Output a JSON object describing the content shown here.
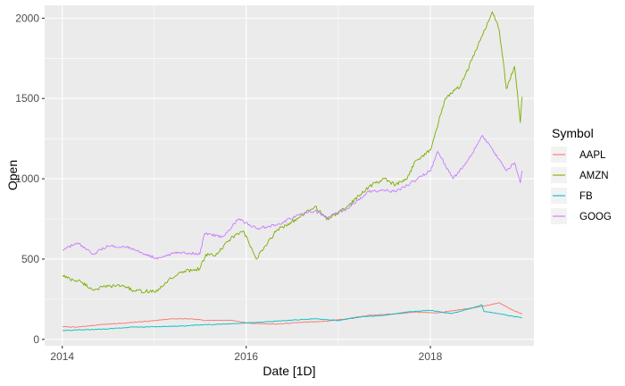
{
  "chart_data": {
    "type": "line",
    "xlabel": "Date [1D]",
    "ylabel": "Open",
    "xlim": [
      "2013-10-23",
      "2019-02-16"
    ],
    "ylim": [
      -40,
      2080
    ],
    "x_ticks": [
      {
        "date": "2014-01-01",
        "label": "2014"
      },
      {
        "date": "2016-01-01",
        "label": "2016"
      },
      {
        "date": "2018-01-01",
        "label": "2018"
      }
    ],
    "y_ticks": [
      0,
      500,
      1000,
      1500,
      2000
    ],
    "grid": true,
    "legend": {
      "title": "Symbol",
      "position": "right"
    },
    "series": [
      {
        "name": "AAPL",
        "color": "#F8766D",
        "points": [
          [
            "2014-01-02",
            79
          ],
          [
            "2014-03-01",
            76
          ],
          [
            "2014-06-01",
            92
          ],
          [
            "2014-09-01",
            101
          ],
          [
            "2014-12-01",
            112
          ],
          [
            "2015-03-01",
            127
          ],
          [
            "2015-05-15",
            128
          ],
          [
            "2015-08-01",
            118
          ],
          [
            "2015-11-01",
            119
          ],
          [
            "2016-01-15",
            100
          ],
          [
            "2016-05-01",
            95
          ],
          [
            "2016-08-01",
            106
          ],
          [
            "2016-11-01",
            111
          ],
          [
            "2017-02-01",
            128
          ],
          [
            "2017-05-01",
            150
          ],
          [
            "2017-08-01",
            157
          ],
          [
            "2017-11-01",
            170
          ],
          [
            "2018-02-01",
            165
          ],
          [
            "2018-05-01",
            185
          ],
          [
            "2018-08-01",
            207
          ],
          [
            "2018-10-01",
            228
          ],
          [
            "2018-11-15",
            190
          ],
          [
            "2018-12-31",
            157
          ]
        ]
      },
      {
        "name": "AMZN",
        "color": "#7CAE00",
        "points": [
          [
            "2014-01-02",
            398
          ],
          [
            "2014-02-01",
            375
          ],
          [
            "2014-03-15",
            360
          ],
          [
            "2014-05-01",
            310
          ],
          [
            "2014-07-01",
            330
          ],
          [
            "2014-09-01",
            335
          ],
          [
            "2014-10-15",
            300
          ],
          [
            "2015-01-15",
            300
          ],
          [
            "2015-03-01",
            375
          ],
          [
            "2015-05-01",
            425
          ],
          [
            "2015-07-01",
            440
          ],
          [
            "2015-07-25",
            530
          ],
          [
            "2015-09-01",
            520
          ],
          [
            "2015-11-01",
            630
          ],
          [
            "2015-12-20",
            675
          ],
          [
            "2016-02-10",
            500
          ],
          [
            "2016-05-01",
            680
          ],
          [
            "2016-08-01",
            760
          ],
          [
            "2016-10-01",
            830
          ],
          [
            "2016-11-15",
            745
          ],
          [
            "2017-02-01",
            820
          ],
          [
            "2017-05-01",
            950
          ],
          [
            "2017-07-01",
            1000
          ],
          [
            "2017-08-15",
            960
          ],
          [
            "2017-10-01",
            1000
          ],
          [
            "2017-11-01",
            1110
          ],
          [
            "2018-01-02",
            1180
          ],
          [
            "2018-03-01",
            1500
          ],
          [
            "2018-05-01",
            1580
          ],
          [
            "2018-07-01",
            1800
          ],
          [
            "2018-09-04",
            2040
          ],
          [
            "2018-10-01",
            1930
          ],
          [
            "2018-10-30",
            1560
          ],
          [
            "2018-12-01",
            1700
          ],
          [
            "2018-12-24",
            1350
          ],
          [
            "2018-12-31",
            1510
          ]
        ]
      },
      {
        "name": "FB",
        "color": "#00BFC4",
        "points": [
          [
            "2014-01-02",
            55
          ],
          [
            "2014-04-01",
            60
          ],
          [
            "2014-07-01",
            65
          ],
          [
            "2014-10-01",
            77
          ],
          [
            "2015-01-01",
            78
          ],
          [
            "2015-04-01",
            82
          ],
          [
            "2015-07-01",
            90
          ],
          [
            "2015-10-01",
            95
          ],
          [
            "2016-01-01",
            102
          ],
          [
            "2016-04-01",
            110
          ],
          [
            "2016-07-01",
            120
          ],
          [
            "2016-10-01",
            128
          ],
          [
            "2017-01-01",
            117
          ],
          [
            "2017-04-01",
            140
          ],
          [
            "2017-07-01",
            150
          ],
          [
            "2017-10-01",
            170
          ],
          [
            "2018-01-01",
            181
          ],
          [
            "2018-03-25",
            160
          ],
          [
            "2018-05-01",
            175
          ],
          [
            "2018-07-25",
            215
          ],
          [
            "2018-08-01",
            175
          ],
          [
            "2018-10-01",
            160
          ],
          [
            "2018-12-31",
            134
          ]
        ]
      },
      {
        "name": "GOOG",
        "color": "#C77CFF",
        "points": [
          [
            "2014-01-02",
            555
          ],
          [
            "2014-03-01",
            600
          ],
          [
            "2014-05-01",
            530
          ],
          [
            "2014-07-01",
            580
          ],
          [
            "2014-09-01",
            580
          ],
          [
            "2014-12-01",
            530
          ],
          [
            "2015-01-15",
            500
          ],
          [
            "2015-04-01",
            545
          ],
          [
            "2015-07-01",
            530
          ],
          [
            "2015-07-20",
            660
          ],
          [
            "2015-10-01",
            640
          ],
          [
            "2015-12-01",
            750
          ],
          [
            "2016-02-10",
            690
          ],
          [
            "2016-05-01",
            710
          ],
          [
            "2016-08-01",
            780
          ],
          [
            "2016-10-01",
            800
          ],
          [
            "2016-11-15",
            760
          ],
          [
            "2017-02-01",
            810
          ],
          [
            "2017-05-01",
            920
          ],
          [
            "2017-07-01",
            930
          ],
          [
            "2017-08-15",
            920
          ],
          [
            "2017-10-01",
            960
          ],
          [
            "2018-01-02",
            1050
          ],
          [
            "2018-01-30",
            1170
          ],
          [
            "2018-04-01",
            1000
          ],
          [
            "2018-06-01",
            1120
          ],
          [
            "2018-07-27",
            1270
          ],
          [
            "2018-09-01",
            1190
          ],
          [
            "2018-10-30",
            1050
          ],
          [
            "2018-12-01",
            1100
          ],
          [
            "2018-12-24",
            975
          ],
          [
            "2018-12-31",
            1050
          ]
        ]
      }
    ]
  }
}
